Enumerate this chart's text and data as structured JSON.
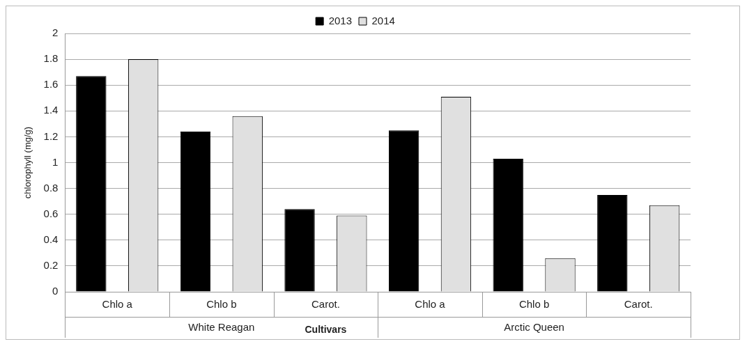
{
  "chart_data": {
    "type": "bar",
    "xlabel": "Cultivars",
    "ylabel": "chlorophyll (mg/g)",
    "categories": [
      "Chlo a",
      "Chlo b",
      "Carot.",
      "Chlo a",
      "Chlo b",
      "Carot."
    ],
    "series": [
      {
        "name": "2013",
        "color": "#000000",
        "values": [
          1.67,
          1.24,
          0.64,
          1.25,
          1.03,
          0.75
        ]
      },
      {
        "name": "2014",
        "color": "#e0e0e0",
        "values": [
          1.8,
          1.36,
          0.59,
          1.51,
          0.26,
          0.67
        ]
      }
    ],
    "annotations": [
      "White Reagan",
      "Arctic Queen"
    ],
    "ylim": [
      0,
      2
    ],
    "yticks": [
      0,
      0.2,
      0.4,
      0.6,
      0.8,
      1,
      1.2,
      1.4,
      1.6,
      1.8,
      2
    ],
    "grid": "y",
    "legend": "top"
  }
}
